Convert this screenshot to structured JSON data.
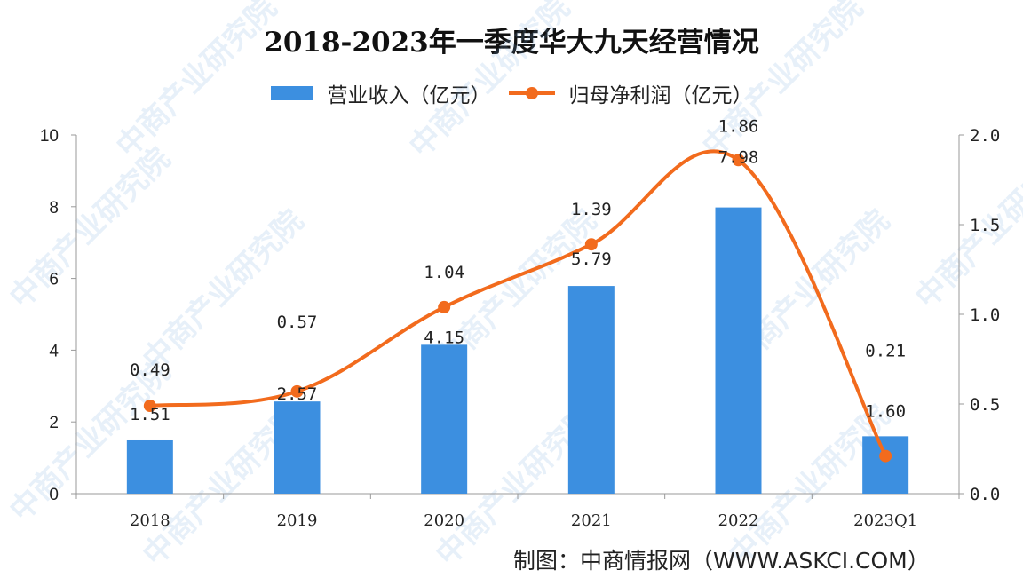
{
  "chart_data": {
    "type": "bar+line",
    "title": "2018-2023年一季度华大九天经营情况",
    "categories": [
      "2018",
      "2019",
      "2020",
      "2021",
      "2022",
      "2023Q1"
    ],
    "series": [
      {
        "name": "营业收入（亿元）",
        "type": "bar",
        "axis": "left",
        "color": "#3c8fe0",
        "values": [
          1.51,
          2.57,
          4.15,
          5.79,
          7.98,
          1.6
        ]
      },
      {
        "name": "归母净利润（亿元）",
        "type": "line",
        "axis": "right",
        "color": "#f26b1d",
        "values": [
          0.49,
          0.57,
          1.04,
          1.39,
          1.86,
          0.21
        ]
      }
    ],
    "y_left": {
      "range": [
        0,
        10
      ],
      "ticks": [
        "0",
        "2",
        "4",
        "6",
        "8",
        "10"
      ]
    },
    "y_right": {
      "range": [
        0,
        2.0
      ],
      "ticks": [
        "0.0",
        "0.5",
        "1.0",
        "1.5",
        "2.0"
      ]
    },
    "bar_labels": [
      "1.51",
      "2.57",
      "4.15",
      "5.79",
      "7.98",
      "1.60"
    ],
    "line_labels": [
      "0.49",
      "0.57",
      "1.04",
      "1.39",
      "1.86",
      "0.21"
    ],
    "legend_position": "top",
    "grid": false
  },
  "legend": {
    "bar": "营业收入（亿元）",
    "line": "归母净利润（亿元）"
  },
  "credit": "制图：中商情报网（WWW.ASKCI.COM）",
  "watermark": "中商产业研究院"
}
